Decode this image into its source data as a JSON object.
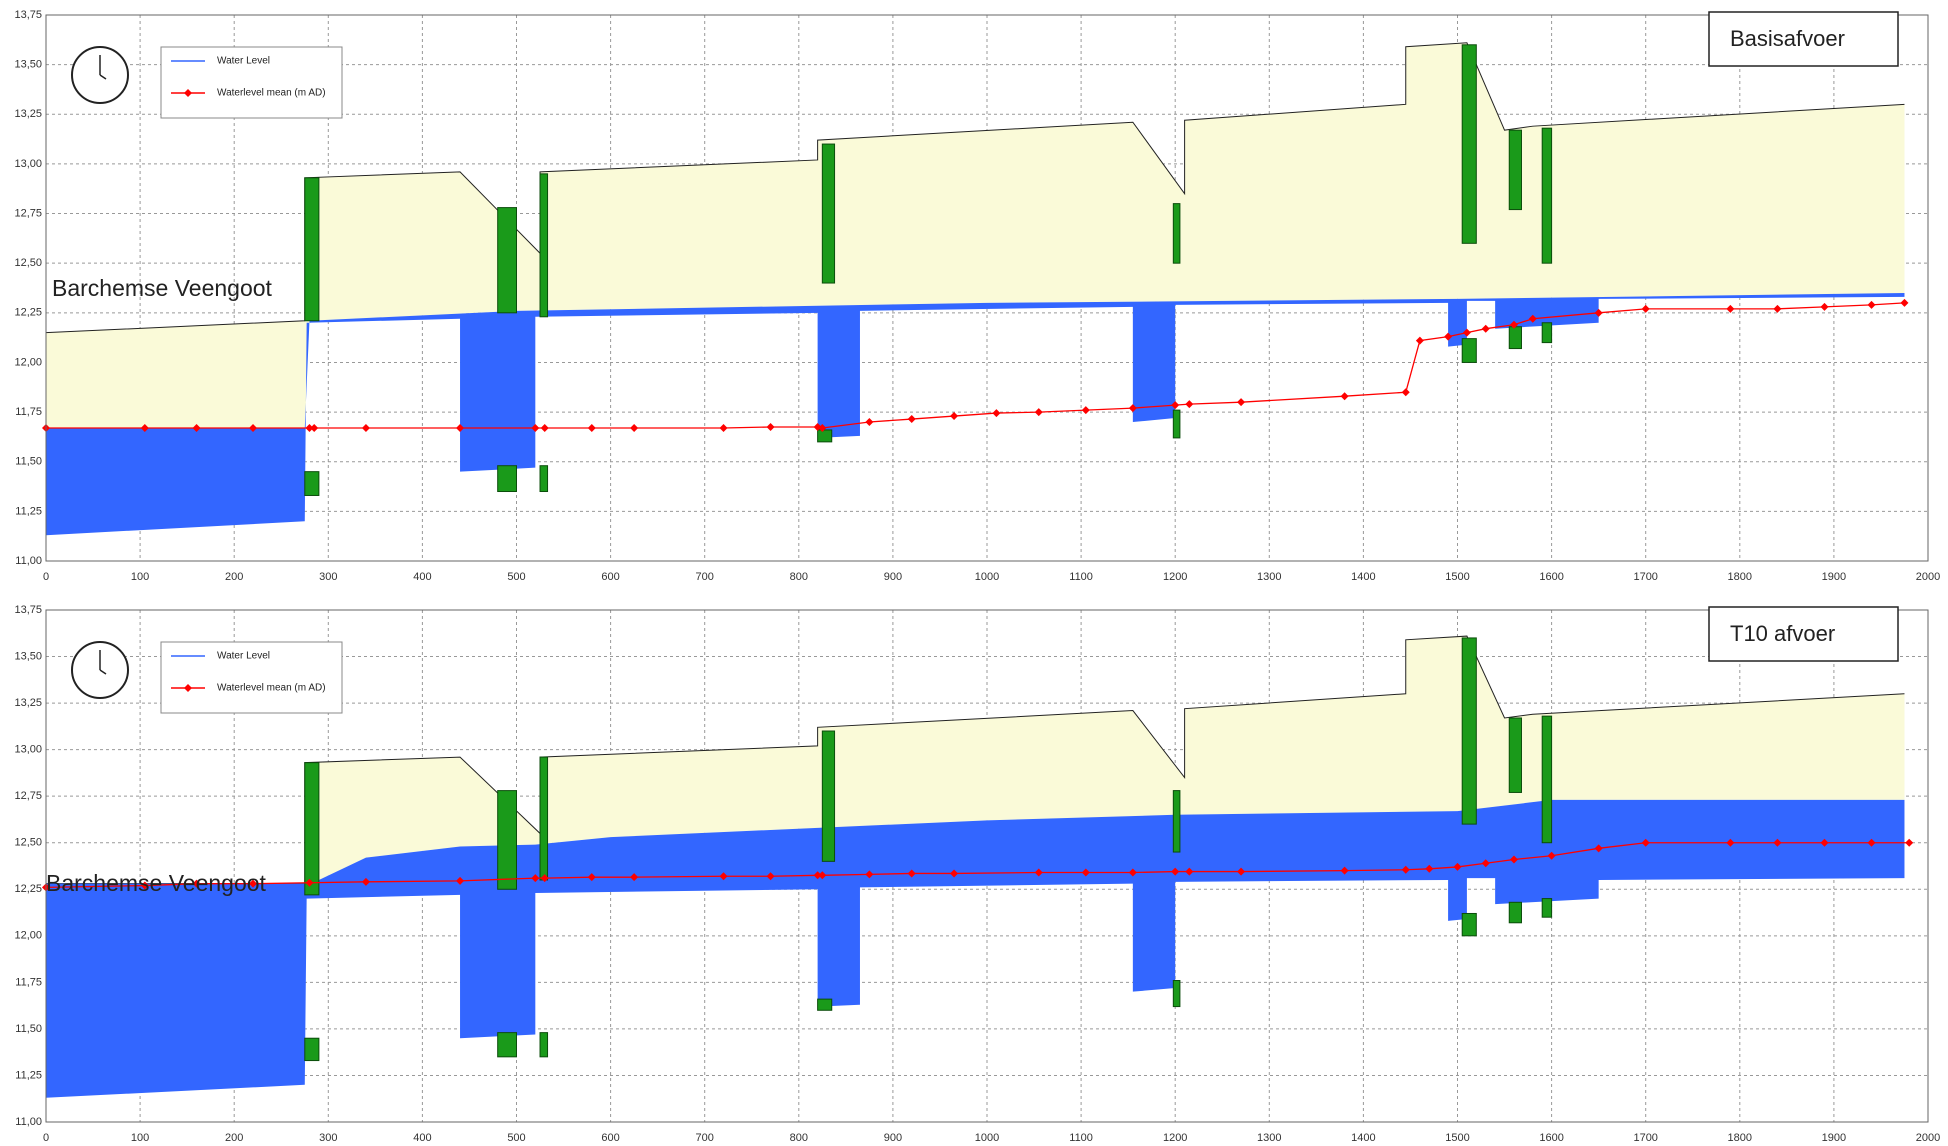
{
  "chart_data": [
    {
      "type": "line",
      "title": "Basisafvoer",
      "annotation": "Barchemse Veengoot",
      "legend": "top-left",
      "grid": true,
      "xlim": [
        0,
        2000
      ],
      "xticks": [
        0,
        100,
        200,
        300,
        400,
        500,
        600,
        700,
        800,
        900,
        1000,
        1100,
        1200,
        1300,
        1400,
        1500,
        1600,
        1700,
        1800,
        1900,
        2000
      ],
      "ylim": [
        11,
        13.75
      ],
      "yticks": [
        {
          "value": 11,
          "label": "11,00"
        },
        {
          "value": 11.25,
          "label": "11,25"
        },
        {
          "value": 11.5,
          "label": "11,50"
        },
        {
          "value": 11.75,
          "label": "11,75"
        },
        {
          "value": 12,
          "label": "12,00"
        },
        {
          "value": 12.25,
          "label": "12,25"
        },
        {
          "value": 12.5,
          "label": "12,50"
        },
        {
          "value": 12.75,
          "label": "12,75"
        },
        {
          "value": 13,
          "label": "13,00"
        },
        {
          "value": 13.25,
          "label": "13,25"
        },
        {
          "value": 13.5,
          "label": "13,50"
        },
        {
          "value": 13.75,
          "label": "13,75"
        }
      ],
      "series": [
        {
          "name": "Water Level",
          "color": "#3366ff",
          "x": [
            0,
            275,
            280,
            500,
            1000,
            1500,
            1975
          ],
          "values": [
            11.67,
            11.67,
            12.21,
            12.26,
            12.3,
            12.32,
            12.35
          ]
        },
        {
          "name": "Waterlevel mean (m AD)",
          "color": "#ff0000",
          "x": [
            0,
            105,
            160,
            220,
            280,
            285,
            340,
            440,
            520,
            530,
            580,
            625,
            720,
            770,
            820,
            825,
            875,
            920,
            965,
            1010,
            1055,
            1105,
            1155,
            1200,
            1215,
            1270,
            1380,
            1445,
            1460,
            1490,
            1510,
            1530,
            1560,
            1580,
            1650,
            1700,
            1790,
            1840,
            1890,
            1940,
            1975
          ],
          "values": [
            11.67,
            11.67,
            11.67,
            11.67,
            11.67,
            11.67,
            11.67,
            11.67,
            11.67,
            11.67,
            11.67,
            11.67,
            11.67,
            11.675,
            11.675,
            11.67,
            11.7,
            11.715,
            11.73,
            11.745,
            11.75,
            11.76,
            11.77,
            11.785,
            11.79,
            11.8,
            11.83,
            11.85,
            12.11,
            12.13,
            12.15,
            12.17,
            12.19,
            12.22,
            12.25,
            12.27,
            12.27,
            12.27,
            12.28,
            12.29,
            12.3
          ]
        }
      ],
      "bed": {
        "x": [
          0,
          275,
          277,
          440,
          440,
          520,
          520,
          820,
          820,
          865,
          865,
          1155,
          1155,
          1200,
          1200,
          1490,
          1490,
          1510,
          1510,
          1540,
          1540,
          1650,
          1650,
          1975
        ],
        "values": [
          11.13,
          11.2,
          12.2,
          12.22,
          11.45,
          11.47,
          12.23,
          12.25,
          11.62,
          11.63,
          12.26,
          12.28,
          11.7,
          11.72,
          12.29,
          12.3,
          12.08,
          12.09,
          12.31,
          12.31,
          12.17,
          12.2,
          12.32,
          12.33
        ]
      },
      "profile": {
        "x": [
          0,
          275,
          275,
          440,
          525,
          525,
          820,
          820,
          1155,
          1210,
          1210,
          1445,
          1445,
          1510,
          1550,
          1580,
          1975
        ],
        "values": [
          12.15,
          12.21,
          12.93,
          12.96,
          12.55,
          12.96,
          13.02,
          13.12,
          13.21,
          12.85,
          13.22,
          13.3,
          13.59,
          13.61,
          13.17,
          13.19,
          13.3
        ]
      },
      "structures": [
        {
          "x0": 275,
          "x1": 290,
          "top": 12.93,
          "bottom": 12.21
        },
        {
          "x0": 480,
          "x1": 500,
          "top": 12.78,
          "bottom": 12.25
        },
        {
          "x0": 525,
          "x1": 533,
          "top": 12.95,
          "bottom": 12.23
        },
        {
          "x0": 825,
          "x1": 838,
          "top": 13.1,
          "bottom": 12.4
        },
        {
          "x0": 1198,
          "x1": 1205,
          "top": 12.8,
          "bottom": 12.5
        },
        {
          "x0": 1505,
          "x1": 1520,
          "top": 13.6,
          "bottom": 12.6
        },
        {
          "x0": 1555,
          "x1": 1568,
          "top": 13.17,
          "bottom": 12.77
        },
        {
          "x0": 1590,
          "x1": 1600,
          "top": 13.18,
          "bottom": 12.5
        },
        {
          "x0": 275,
          "x1": 290,
          "top": 11.45,
          "bottom": 11.33
        },
        {
          "x0": 480,
          "x1": 500,
          "top": 11.48,
          "bottom": 11.35
        },
        {
          "x0": 525,
          "x1": 533,
          "top": 11.48,
          "bottom": 11.35
        },
        {
          "x0": 820,
          "x1": 835,
          "top": 11.66,
          "bottom": 11.6
        },
        {
          "x0": 1198,
          "x1": 1205,
          "top": 11.76,
          "bottom": 11.62
        },
        {
          "x0": 1505,
          "x1": 1520,
          "top": 12.12,
          "bottom": 12.0
        },
        {
          "x0": 1555,
          "x1": 1568,
          "top": 12.18,
          "bottom": 12.07
        },
        {
          "x0": 1590,
          "x1": 1600,
          "top": 12.2,
          "bottom": 12.1
        }
      ]
    },
    {
      "type": "line",
      "title": "T10 afvoer",
      "annotation": "Barchemse Veengoot",
      "legend": "top-left",
      "grid": true,
      "xlim": [
        0,
        2000
      ],
      "xticks": [
        0,
        100,
        200,
        300,
        400,
        500,
        600,
        700,
        800,
        900,
        1000,
        1100,
        1200,
        1300,
        1400,
        1500,
        1600,
        1700,
        1800,
        1900,
        2000
      ],
      "ylim": [
        11,
        13.75
      ],
      "yticks": [
        {
          "value": 11,
          "label": "11,00"
        },
        {
          "value": 11.25,
          "label": "11,25"
        },
        {
          "value": 11.5,
          "label": "11,50"
        },
        {
          "value": 11.75,
          "label": "11,75"
        },
        {
          "value": 12,
          "label": "12,00"
        },
        {
          "value": 12.25,
          "label": "12,25"
        },
        {
          "value": 12.5,
          "label": "12,50"
        },
        {
          "value": 12.75,
          "label": "12,75"
        },
        {
          "value": 13,
          "label": "13,00"
        },
        {
          "value": 13.25,
          "label": "13,25"
        },
        {
          "value": 13.5,
          "label": "13,50"
        },
        {
          "value": 13.75,
          "label": "13,75"
        }
      ],
      "series": [
        {
          "name": "Water Level",
          "color": "#3366ff",
          "x": [
            0,
            275,
            290,
            340,
            440,
            520,
            600,
            820,
            1000,
            1200,
            1500,
            1600,
            1975
          ],
          "values": [
            12.28,
            12.28,
            12.3,
            12.42,
            12.48,
            12.49,
            12.53,
            12.58,
            12.62,
            12.65,
            12.67,
            12.73,
            12.73
          ]
        },
        {
          "name": "Waterlevel mean (m AD)",
          "color": "#ff0000",
          "x": [
            0,
            105,
            160,
            220,
            280,
            340,
            440,
            520,
            530,
            580,
            625,
            720,
            770,
            820,
            825,
            875,
            920,
            965,
            1055,
            1105,
            1155,
            1200,
            1215,
            1270,
            1380,
            1445,
            1470,
            1500,
            1530,
            1560,
            1600,
            1650,
            1700,
            1790,
            1840,
            1890,
            1940,
            1980
          ],
          "values": [
            12.26,
            12.27,
            12.28,
            12.28,
            12.285,
            12.29,
            12.295,
            12.31,
            12.31,
            12.315,
            12.315,
            12.32,
            12.32,
            12.325,
            12.325,
            12.33,
            12.335,
            12.335,
            12.34,
            12.34,
            12.34,
            12.345,
            12.345,
            12.345,
            12.35,
            12.355,
            12.36,
            12.37,
            12.39,
            12.41,
            12.43,
            12.47,
            12.5,
            12.5,
            12.5,
            12.5,
            12.5,
            12.5
          ]
        }
      ],
      "bed": {
        "x": [
          0,
          275,
          277,
          440,
          440,
          520,
          520,
          820,
          820,
          865,
          865,
          1155,
          1155,
          1200,
          1200,
          1490,
          1490,
          1510,
          1510,
          1540,
          1540,
          1650,
          1650,
          1975
        ],
        "values": [
          11.13,
          11.2,
          12.2,
          12.22,
          11.45,
          11.47,
          12.23,
          12.25,
          11.62,
          11.63,
          12.26,
          12.28,
          11.7,
          11.72,
          12.29,
          12.3,
          12.08,
          12.09,
          12.31,
          12.31,
          12.17,
          12.2,
          12.3,
          12.31
        ]
      },
      "profile": {
        "x": [
          0,
          275,
          275,
          440,
          525,
          525,
          820,
          820,
          1155,
          1210,
          1210,
          1445,
          1445,
          1510,
          1550,
          1580,
          1975
        ],
        "values": [
          12.28,
          12.28,
          12.93,
          12.96,
          12.55,
          12.96,
          13.02,
          13.12,
          13.21,
          12.85,
          13.22,
          13.3,
          13.59,
          13.61,
          13.17,
          13.19,
          13.3
        ]
      },
      "structures": [
        {
          "x0": 275,
          "x1": 290,
          "top": 12.93,
          "bottom": 12.22
        },
        {
          "x0": 480,
          "x1": 500,
          "top": 12.78,
          "bottom": 12.25
        },
        {
          "x0": 525,
          "x1": 533,
          "top": 12.96,
          "bottom": 12.3
        },
        {
          "x0": 825,
          "x1": 838,
          "top": 13.1,
          "bottom": 12.4
        },
        {
          "x0": 1198,
          "x1": 1205,
          "top": 12.78,
          "bottom": 12.45
        },
        {
          "x0": 1505,
          "x1": 1520,
          "top": 13.6,
          "bottom": 12.6
        },
        {
          "x0": 1555,
          "x1": 1568,
          "top": 13.17,
          "bottom": 12.77
        },
        {
          "x0": 1590,
          "x1": 1600,
          "top": 13.18,
          "bottom": 12.5
        },
        {
          "x0": 275,
          "x1": 290,
          "top": 11.45,
          "bottom": 11.33
        },
        {
          "x0": 480,
          "x1": 500,
          "top": 11.48,
          "bottom": 11.35
        },
        {
          "x0": 525,
          "x1": 533,
          "top": 11.48,
          "bottom": 11.35
        },
        {
          "x0": 820,
          "x1": 835,
          "top": 11.66,
          "bottom": 11.6
        },
        {
          "x0": 1198,
          "x1": 1205,
          "top": 11.76,
          "bottom": 11.62
        },
        {
          "x0": 1505,
          "x1": 1520,
          "top": 12.12,
          "bottom": 12.0
        },
        {
          "x0": 1555,
          "x1": 1568,
          "top": 12.18,
          "bottom": 12.07
        },
        {
          "x0": 1590,
          "x1": 1600,
          "top": 12.2,
          "bottom": 12.1
        }
      ]
    }
  ]
}
